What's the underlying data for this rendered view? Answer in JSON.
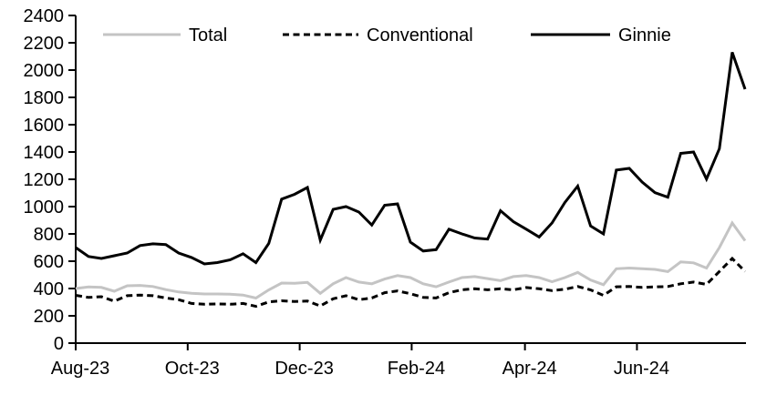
{
  "chart_data": {
    "type": "line",
    "x_unit": "week",
    "x_tick_labels": [
      "Aug-23",
      "Oct-23",
      "Dec-23",
      "Feb-24",
      "Apr-24",
      "Jun-24"
    ],
    "x_tick_positions_points": [
      0,
      8.7,
      17.4,
      26.1,
      34.9,
      43.6
    ],
    "y_tick_labels": [
      "0",
      "200",
      "400",
      "600",
      "800",
      "1000",
      "1200",
      "1400",
      "1600",
      "1800",
      "2000",
      "2200",
      "2400"
    ],
    "ylim": [
      0,
      2400
    ],
    "grid": false,
    "legend_position": "top-inside",
    "axis_color": "#000000",
    "series": [
      {
        "name": "Total",
        "color": "#c4c4c4",
        "style": "solid",
        "values": [
          400,
          412,
          408,
          380,
          420,
          423,
          415,
          392,
          375,
          365,
          360,
          360,
          358,
          352,
          330,
          390,
          440,
          438,
          445,
          365,
          435,
          480,
          447,
          435,
          469,
          495,
          480,
          435,
          413,
          447,
          480,
          487,
          473,
          458,
          487,
          495,
          480,
          450,
          480,
          518,
          462,
          428,
          545,
          550,
          545,
          540,
          524,
          595,
          588,
          550,
          700,
          880,
          750
        ]
      },
      {
        "name": "Conventional",
        "color": "#000000",
        "style": "dashed",
        "values": [
          350,
          335,
          340,
          307,
          347,
          352,
          347,
          331,
          318,
          291,
          285,
          287,
          285,
          291,
          269,
          302,
          310,
          305,
          308,
          272,
          325,
          347,
          318,
          331,
          369,
          382,
          362,
          335,
          331,
          369,
          391,
          398,
          391,
          398,
          391,
          407,
          398,
          385,
          395,
          415,
          390,
          350,
          413,
          415,
          408,
          412,
          415,
          435,
          447,
          430,
          525,
          620,
          525
        ]
      },
      {
        "name": "Ginnie",
        "color": "#000000",
        "style": "solid",
        "values": [
          700,
          635,
          620,
          640,
          660,
          715,
          727,
          722,
          660,
          627,
          580,
          590,
          610,
          655,
          590,
          730,
          1055,
          1090,
          1140,
          755,
          980,
          1000,
          960,
          865,
          1010,
          1020,
          740,
          675,
          685,
          835,
          800,
          770,
          762,
          970,
          890,
          835,
          777,
          880,
          1030,
          1150,
          858,
          800,
          1267,
          1280,
          1180,
          1102,
          1069,
          1390,
          1400,
          1202,
          1424,
          2130,
          1860
        ]
      }
    ]
  }
}
